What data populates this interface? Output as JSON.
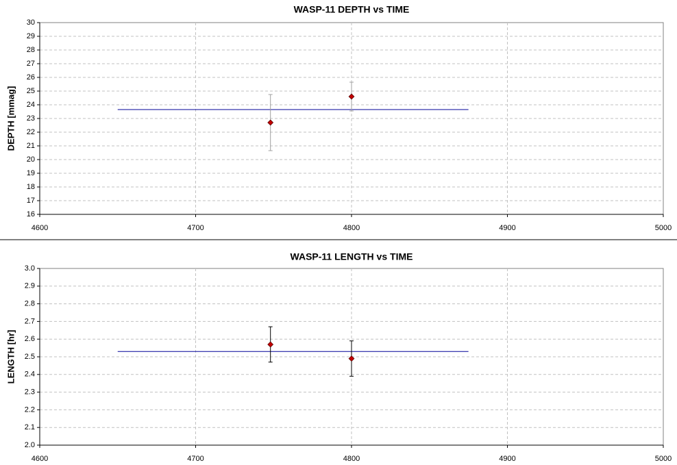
{
  "chart_data": [
    {
      "type": "scatter",
      "title": "WASP-11 DEPTH vs TIME",
      "ylabel": "DEPTH [mmag]",
      "xlim": [
        4600,
        5000
      ],
      "xticks": [
        4600,
        4700,
        4800,
        4900,
        5000
      ],
      "ylim": [
        16,
        30
      ],
      "yticks": [
        16,
        17,
        18,
        19,
        20,
        21,
        22,
        23,
        24,
        25,
        26,
        27,
        28,
        29,
        30
      ],
      "grid": true,
      "series": [
        {
          "color": "#c00000",
          "error_color": "#a0a0a0",
          "x": [
            4748,
            4800
          ],
          "values": [
            22.7,
            24.6
          ],
          "errors": [
            2.05,
            1.05
          ]
        }
      ],
      "fit": {
        "color": "#000099",
        "x": [
          4650,
          4875
        ],
        "values": [
          23.65,
          23.65
        ]
      }
    },
    {
      "type": "scatter",
      "title": "WASP-11 LENGTH vs TIME",
      "ylabel": "LENGTH [hr]",
      "xlim": [
        4600,
        5000
      ],
      "xticks": [
        4600,
        4700,
        4800,
        4900,
        5000
      ],
      "ylim": [
        2,
        3
      ],
      "yticks": [
        {
          "value": 2,
          "label": "2.0"
        },
        2.1,
        2.2,
        2.3,
        2.4,
        2.5,
        2.6,
        2.7,
        2.8,
        2.9,
        {
          "value": 3,
          "label": "3.0"
        }
      ],
      "grid": true,
      "series": [
        {
          "color": "#c00000",
          "error_color": "#000000",
          "x": [
            4748,
            4800
          ],
          "values": [
            2.57,
            2.49
          ],
          "errors": [
            0.1,
            0.1
          ]
        }
      ],
      "fit": {
        "color": "#000099",
        "x": [
          4650,
          4875
        ],
        "values": [
          2.53,
          2.53
        ]
      }
    }
  ]
}
